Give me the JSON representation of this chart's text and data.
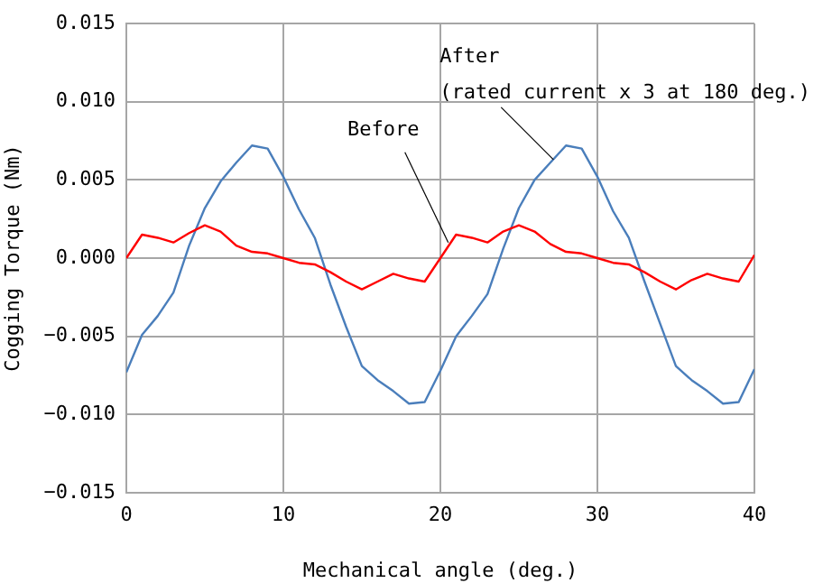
{
  "chart_data": {
    "type": "line",
    "xlabel": "Mechanical angle (deg.)",
    "ylabel": "Cogging Torque (Nm)",
    "x": [
      0,
      1,
      2,
      3,
      4,
      5,
      6,
      7,
      8,
      9,
      10,
      11,
      12,
      13,
      14,
      15,
      16,
      17,
      18,
      19,
      20,
      21,
      22,
      23,
      24,
      25,
      26,
      27,
      28,
      29,
      30,
      31,
      32,
      33,
      34,
      35,
      36,
      37,
      38,
      39,
      40
    ],
    "series": [
      {
        "color": "#ff0000",
        "values": [
          0,
          0.0015,
          0.0013,
          0.001,
          0.0016,
          0.0021,
          0.0017,
          0.0008,
          0.0004,
          0.0003,
          0,
          -0.0003,
          -0.0004,
          -0.0009,
          -0.0015,
          -0.002,
          -0.0015,
          -0.001,
          -0.0013,
          -0.0015,
          0,
          0.0015,
          0.0013,
          0.001,
          0.0017,
          0.0021,
          0.0017,
          0.0009,
          0.0004,
          0.0003,
          0,
          -0.0003,
          -0.0004,
          -0.0009,
          -0.0015,
          -0.002,
          -0.0014,
          -0.001,
          -0.0013,
          -0.0015,
          0.0002
        ]
      },
      {
        "color": "#4a7ebb",
        "values": [
          -0.0073,
          -0.0049,
          -0.0037,
          -0.0022,
          0.0008,
          0.0032,
          0.0049,
          0.0061,
          0.0072,
          0.007,
          0.0052,
          0.0031,
          0.0013,
          -0.0017,
          -0.0044,
          -0.0069,
          -0.0078,
          -0.0085,
          -0.0093,
          -0.0092,
          -0.0072,
          -0.005,
          -0.0037,
          -0.0023,
          0.0006,
          0.0032,
          0.005,
          0.0061,
          0.0072,
          0.007,
          0.0052,
          0.003,
          0.0013,
          -0.0015,
          -0.0042,
          -0.0069,
          -0.0078,
          -0.0085,
          -0.0093,
          -0.0092,
          -0.0071
        ]
      }
    ],
    "xlim": [
      0,
      40
    ],
    "xticks": [
      0,
      10,
      20,
      30,
      40
    ],
    "ylim": [
      -0.015,
      0.015
    ],
    "yticks": [
      {
        "value": -0.015,
        "label": "−0.015"
      },
      {
        "value": -0.01,
        "label": "−0.010"
      },
      {
        "value": -0.005,
        "label": "−0.005"
      },
      {
        "value": 0,
        "label": "0.000"
      },
      {
        "value": 0.005,
        "label": "0.005"
      },
      {
        "value": 0.01,
        "label": "0.010"
      },
      {
        "value": 0.015,
        "label": "0.015"
      }
    ],
    "grid": true,
    "marker": "none",
    "line_style": "solid",
    "annotations": [
      {
        "text": "Before",
        "x": 20.5,
        "y": 0.001
      },
      {
        "text": "After\n(rated current x 3 at 180 deg.)",
        "x": 27.2,
        "y": 0.0063
      }
    ]
  }
}
